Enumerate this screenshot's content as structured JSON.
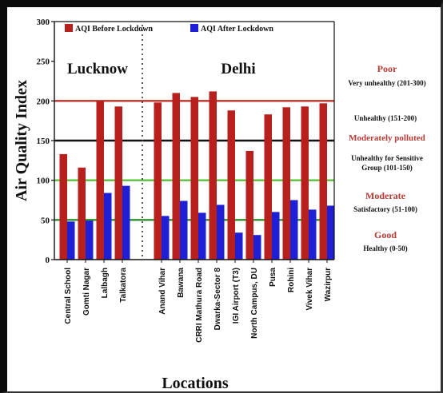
{
  "chart_data": {
    "type": "bar",
    "ylabel": "Air Quality Index",
    "xlabel": "Locations",
    "ylim": [
      0,
      300
    ],
    "yticks": [
      0,
      50,
      100,
      150,
      200,
      250,
      300
    ],
    "grid": false,
    "legend_position": "top",
    "groups": [
      {
        "label": "Lucknow",
        "categories": [
          "Central School",
          "Gomti Nagar",
          "Lalbagh",
          "Talkatora"
        ]
      },
      {
        "label": "Delhi",
        "categories": [
          "Anand Vihar",
          "Bawana",
          "CRRI Mathura Road",
          "Dwarka-Sector 8",
          "IGI Airport (T3)",
          "North Campus, DU",
          "Pusa",
          "Rohini",
          "Vivek Vihar",
          "Wazirpur"
        ]
      }
    ],
    "categories": [
      "Central School",
      "Gomti Nagar",
      "Lalbagh",
      "Talkatora",
      "Anand Vihar",
      "Bawana",
      "CRRI Mathura Road",
      "Dwarka-Sector 8",
      "IGI Airport (T3)",
      "North Campus, DU",
      "Pusa",
      "Rohini",
      "Vivek Vihar",
      "Wazirpur"
    ],
    "series": [
      {
        "name": "AQI Before Lockdown",
        "color": "#b8201e",
        "values": [
          133,
          116,
          200,
          193,
          198,
          210,
          205,
          212,
          188,
          137,
          183,
          192,
          193,
          197
        ]
      },
      {
        "name": "AQI After Lockdown",
        "color": "#1f1fd6",
        "values": [
          48,
          49,
          84,
          93,
          55,
          74,
          59,
          69,
          34,
          31,
          60,
          75,
          63,
          68
        ]
      }
    ],
    "reference_lines": [
      {
        "value": 200,
        "color": "#c0302a"
      },
      {
        "value": 150,
        "color": "#111111"
      },
      {
        "value": 100,
        "color": "#58c23a"
      },
      {
        "value": 50,
        "color": "#2e8f2e"
      }
    ],
    "annotations": [
      {
        "title": "Poor",
        "desc": "Very unhealthy (201-300)"
      },
      {
        "title": "",
        "desc": "Unhealthy (151-200)"
      },
      {
        "title": "Moderately polluted",
        "desc": "Unhealthy for Sensitive Group (101-150)"
      },
      {
        "title": "Moderate",
        "desc": "Satisfactory (51-100)"
      },
      {
        "title": "Good",
        "desc": "Healthy (0-50)"
      }
    ]
  }
}
